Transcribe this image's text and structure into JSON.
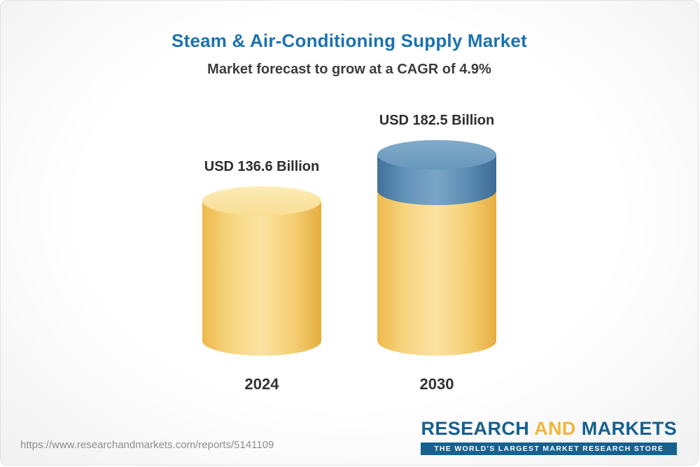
{
  "chart_data": {
    "type": "bar",
    "title": "Steam & Air-Conditioning Supply Market",
    "subtitle": "Market forecast to grow at a CAGR of 4.9%",
    "cagr_percent": 4.9,
    "unit": "USD Billion",
    "categories": [
      "2024",
      "2030"
    ],
    "values": [
      136.6,
      182.5
    ],
    "bars": [
      {
        "category": "2024",
        "value": 136.6,
        "label": "USD 136.6 Billion",
        "color": "#f6d47e"
      },
      {
        "category": "2030",
        "value": 182.5,
        "label": "USD 182.5 Billion",
        "segments": [
          {
            "name": "base",
            "value": 136.6,
            "color": "#f6d47e"
          },
          {
            "name": "growth",
            "value": 45.9,
            "color": "#6495ba"
          }
        ]
      }
    ],
    "legend": "none",
    "grid": false,
    "ylim": [
      0,
      200
    ]
  },
  "footer": {
    "url": "https://www.researchandmarkets.com/reports/5141109",
    "logo": {
      "research": "RESEARCH",
      "and": "AND",
      "markets": "MARKETS",
      "tagline": "THE WORLD'S LARGEST MARKET RESEARCH STORE"
    }
  },
  "colors": {
    "title_blue": "#1b72b0",
    "gold": "#f2c14e",
    "blue": "#5d8db3",
    "logo_blue": "#16618f",
    "logo_gold": "#f0b63b"
  }
}
